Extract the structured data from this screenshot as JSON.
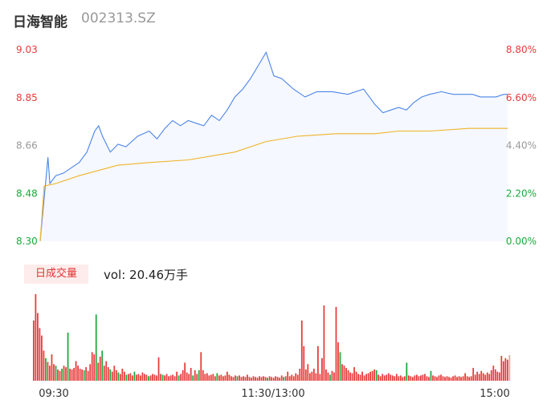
{
  "header": {
    "name": "日海智能",
    "code": "002313.SZ"
  },
  "volume_panel": {
    "tag": "日成交量",
    "vol_label": "vol: 20.46万手"
  },
  "colors": {
    "up": "#e83a3a",
    "down": "#1aaa3b",
    "price_line": "#4b84e8",
    "avg_line": "#f0b429",
    "area": "#f5f8fe",
    "neutral": "#9a9a9a"
  },
  "chart_data": [
    {
      "type": "line",
      "title": "",
      "prev_close": 8.3,
      "ylim": [
        8.3,
        9.03
      ],
      "left_ticks": [
        "9.03",
        "8.85",
        "8.66",
        "8.48",
        "8.30"
      ],
      "right_ticks": [
        "8.80%",
        "6.60%",
        "4.40%",
        "2.20%",
        "0.00%"
      ],
      "x_ticks": [
        "09:30",
        "11:30/13:00",
        "15:00"
      ],
      "series": [
        {
          "values_key": "price",
          "x": [
            0,
            4,
            5,
            8,
            12,
            16,
            20,
            24,
            28,
            30,
            32,
            36,
            40,
            44,
            50,
            56,
            60,
            64,
            68,
            72,
            76,
            80,
            84,
            88,
            92,
            96,
            100,
            104,
            108,
            112,
            116,
            120,
            124,
            130,
            136,
            142,
            150,
            158,
            166,
            172,
            176,
            180,
            184,
            188,
            192,
            196,
            200,
            206,
            212,
            218,
            222,
            226,
            230,
            234,
            238,
            240
          ],
          "values": [
            8.3,
            8.62,
            8.52,
            8.55,
            8.56,
            8.58,
            8.6,
            8.64,
            8.72,
            8.74,
            8.7,
            8.64,
            8.67,
            8.66,
            8.7,
            8.72,
            8.69,
            8.73,
            8.76,
            8.74,
            8.76,
            8.75,
            8.74,
            8.78,
            8.76,
            8.8,
            8.85,
            8.88,
            8.92,
            8.97,
            9.02,
            8.93,
            8.92,
            8.88,
            8.85,
            8.87,
            8.87,
            8.86,
            8.88,
            8.82,
            8.79,
            8.8,
            8.81,
            8.8,
            8.83,
            8.85,
            8.86,
            8.87,
            8.86,
            8.86,
            8.86,
            8.85,
            8.85,
            8.85,
            8.86,
            8.86
          ]
        },
        {
          "values_key": "avg",
          "x": [
            0,
            2,
            8,
            20,
            40,
            56,
            76,
            100,
            116,
            132,
            152,
            172,
            184,
            200,
            220,
            240
          ],
          "values": [
            8.3,
            8.51,
            8.52,
            8.55,
            8.59,
            8.6,
            8.61,
            8.64,
            8.68,
            8.7,
            8.71,
            8.71,
            8.72,
            8.72,
            8.73,
            8.73
          ]
        }
      ]
    },
    {
      "type": "bar",
      "title": "vol: 20.46万手",
      "volume_bars": [
        [
          8,
          "up"
        ],
        [
          11.5,
          "up"
        ],
        [
          9,
          "up"
        ],
        [
          7,
          "up"
        ],
        [
          6,
          "up"
        ],
        [
          4,
          "up"
        ],
        [
          3,
          "down"
        ],
        [
          2.5,
          "up"
        ],
        [
          2,
          "up"
        ],
        [
          3.5,
          "up"
        ],
        [
          2.2,
          "up"
        ],
        [
          2,
          "down"
        ],
        [
          1.5,
          "up"
        ],
        [
          1.3,
          "up"
        ],
        [
          1.6,
          "down"
        ],
        [
          2,
          "up"
        ],
        [
          1.8,
          "up"
        ],
        [
          6.4,
          "down"
        ],
        [
          1.6,
          "up"
        ],
        [
          1.5,
          "up"
        ],
        [
          1.7,
          "up"
        ],
        [
          2.6,
          "up"
        ],
        [
          2,
          "up"
        ],
        [
          1.6,
          "up"
        ],
        [
          1.5,
          "up"
        ],
        [
          1.4,
          "down"
        ],
        [
          1.8,
          "up"
        ],
        [
          1.3,
          "up"
        ],
        [
          2.2,
          "up"
        ],
        [
          3.8,
          "up"
        ],
        [
          3.5,
          "up"
        ],
        [
          8.8,
          "down"
        ],
        [
          2.4,
          "up"
        ],
        [
          3.2,
          "up"
        ],
        [
          4,
          "down"
        ],
        [
          2,
          "up"
        ],
        [
          2.6,
          "up"
        ],
        [
          1.8,
          "up"
        ],
        [
          1.5,
          "down"
        ],
        [
          1.2,
          "up"
        ],
        [
          2,
          "up"
        ],
        [
          1.4,
          "up"
        ],
        [
          1.1,
          "down"
        ],
        [
          0.9,
          "up"
        ],
        [
          1.6,
          "up"
        ],
        [
          1.2,
          "up"
        ],
        [
          0.8,
          "down"
        ],
        [
          0.9,
          "up"
        ],
        [
          1,
          "up"
        ],
        [
          0.7,
          "up"
        ],
        [
          1.2,
          "down"
        ],
        [
          0.8,
          "up"
        ],
        [
          0.9,
          "up"
        ],
        [
          0.7,
          "up"
        ],
        [
          1.1,
          "up"
        ],
        [
          0.9,
          "up"
        ],
        [
          0.8,
          "up"
        ],
        [
          0.6,
          "down"
        ],
        [
          0.7,
          "up"
        ],
        [
          0.9,
          "up"
        ],
        [
          0.8,
          "up"
        ],
        [
          0.7,
          "up"
        ],
        [
          3.1,
          "up"
        ],
        [
          0.9,
          "up"
        ],
        [
          0.8,
          "down"
        ],
        [
          0.7,
          "up"
        ],
        [
          0.9,
          "up"
        ],
        [
          0.6,
          "up"
        ],
        [
          0.7,
          "up"
        ],
        [
          0.8,
          "up"
        ],
        [
          0.6,
          "up"
        ],
        [
          1.2,
          "up"
        ],
        [
          0.7,
          "down"
        ],
        [
          0.9,
          "up"
        ],
        [
          1.4,
          "up"
        ],
        [
          2.4,
          "up"
        ],
        [
          1.1,
          "up"
        ],
        [
          0.9,
          "up"
        ],
        [
          1.7,
          "up"
        ],
        [
          0.7,
          "down"
        ],
        [
          1.4,
          "up"
        ],
        [
          0.9,
          "up"
        ],
        [
          1.4,
          "down"
        ],
        [
          3.8,
          "up"
        ],
        [
          1.4,
          "up"
        ],
        [
          0.9,
          "up"
        ],
        [
          1,
          "up"
        ],
        [
          0.7,
          "up"
        ],
        [
          0.8,
          "up"
        ],
        [
          0.9,
          "up"
        ],
        [
          0.6,
          "up"
        ],
        [
          1,
          "down"
        ],
        [
          0.7,
          "up"
        ],
        [
          0.8,
          "up"
        ],
        [
          0.6,
          "up"
        ],
        [
          0.7,
          "up"
        ],
        [
          1.2,
          "up"
        ],
        [
          0.8,
          "up"
        ],
        [
          0.6,
          "up"
        ],
        [
          0.5,
          "up"
        ],
        [
          0.7,
          "up"
        ],
        [
          0.6,
          "down"
        ],
        [
          0.7,
          "up"
        ],
        [
          0.5,
          "up"
        ],
        [
          0.6,
          "up"
        ],
        [
          0.5,
          "up"
        ],
        [
          0.8,
          "up"
        ],
        [
          0.5,
          "up"
        ],
        [
          0.4,
          "up"
        ],
        [
          0.6,
          "up"
        ],
        [
          0.5,
          "up"
        ],
        [
          0.4,
          "up"
        ],
        [
          0.6,
          "up"
        ],
        [
          0.5,
          "up"
        ],
        [
          0.6,
          "up"
        ],
        [
          0.5,
          "up"
        ],
        [
          0.4,
          "down"
        ],
        [
          0.6,
          "up"
        ],
        [
          0.5,
          "up"
        ],
        [
          0.4,
          "up"
        ],
        [
          0.6,
          "up"
        ],
        [
          0.5,
          "up"
        ],
        [
          0.4,
          "up"
        ],
        [
          0.7,
          "up"
        ],
        [
          0.5,
          "down"
        ],
        [
          0.6,
          "up"
        ],
        [
          1.2,
          "up"
        ],
        [
          0.6,
          "up"
        ],
        [
          0.8,
          "up"
        ],
        [
          0.6,
          "up"
        ],
        [
          1,
          "up"
        ],
        [
          0.8,
          "up"
        ],
        [
          1.6,
          "up"
        ],
        [
          8,
          "up"
        ],
        [
          4.6,
          "up"
        ],
        [
          1.5,
          "up"
        ],
        [
          2.2,
          "up"
        ],
        [
          1,
          "up"
        ],
        [
          1.2,
          "up"
        ],
        [
          1.6,
          "up"
        ],
        [
          1,
          "up"
        ],
        [
          4.6,
          "up"
        ],
        [
          0.9,
          "up"
        ],
        [
          3,
          "up"
        ],
        [
          10,
          "up"
        ],
        [
          1.5,
          "up"
        ],
        [
          1.1,
          "up"
        ],
        [
          0.8,
          "down"
        ],
        [
          1.3,
          "up"
        ],
        [
          1.1,
          "up"
        ],
        [
          9.8,
          "up"
        ],
        [
          5.1,
          "up"
        ],
        [
          3.8,
          "down"
        ],
        [
          2.2,
          "up"
        ],
        [
          2,
          "up"
        ],
        [
          1.7,
          "up"
        ],
        [
          1.4,
          "up"
        ],
        [
          1.1,
          "up"
        ],
        [
          1,
          "up"
        ],
        [
          1.8,
          "up"
        ],
        [
          1.2,
          "up"
        ],
        [
          0.9,
          "up"
        ],
        [
          0.8,
          "up"
        ],
        [
          1.2,
          "up"
        ],
        [
          0.7,
          "up"
        ],
        [
          0.9,
          "up"
        ],
        [
          1,
          "up"
        ],
        [
          1.2,
          "up"
        ],
        [
          1.3,
          "up"
        ],
        [
          1.5,
          "up"
        ],
        [
          1.4,
          "down"
        ],
        [
          0.8,
          "up"
        ],
        [
          0.6,
          "up"
        ],
        [
          0.9,
          "up"
        ],
        [
          0.7,
          "up"
        ],
        [
          0.8,
          "up"
        ],
        [
          1,
          "up"
        ],
        [
          0.8,
          "up"
        ],
        [
          0.7,
          "up"
        ],
        [
          0.6,
          "up"
        ],
        [
          0.9,
          "up"
        ],
        [
          0.6,
          "up"
        ],
        [
          0.7,
          "up"
        ],
        [
          0.5,
          "up"
        ],
        [
          0.6,
          "up"
        ],
        [
          2.4,
          "down"
        ],
        [
          0.7,
          "up"
        ],
        [
          0.6,
          "up"
        ],
        [
          0.5,
          "up"
        ],
        [
          0.7,
          "up"
        ],
        [
          0.8,
          "up"
        ],
        [
          0.6,
          "up"
        ],
        [
          0.7,
          "up"
        ],
        [
          0.8,
          "up"
        ],
        [
          0.9,
          "up"
        ],
        [
          0.6,
          "up"
        ],
        [
          0.5,
          "up"
        ],
        [
          1.3,
          "down"
        ],
        [
          0.7,
          "up"
        ],
        [
          0.6,
          "up"
        ],
        [
          0.5,
          "up"
        ],
        [
          0.7,
          "up"
        ],
        [
          0.8,
          "up"
        ],
        [
          0.6,
          "up"
        ],
        [
          0.5,
          "up"
        ],
        [
          0.6,
          "up"
        ],
        [
          0.5,
          "up"
        ],
        [
          0.4,
          "up"
        ],
        [
          0.6,
          "up"
        ],
        [
          0.7,
          "up"
        ],
        [
          0.5,
          "up"
        ],
        [
          0.6,
          "up"
        ],
        [
          0.5,
          "up"
        ],
        [
          0.6,
          "up"
        ],
        [
          1,
          "up"
        ],
        [
          0.6,
          "up"
        ],
        [
          0.5,
          "up"
        ],
        [
          0.6,
          "up"
        ],
        [
          1.7,
          "up"
        ],
        [
          0.8,
          "up"
        ],
        [
          1.2,
          "up"
        ],
        [
          0.9,
          "up"
        ],
        [
          1.3,
          "up"
        ],
        [
          1,
          "up"
        ],
        [
          0.8,
          "up"
        ],
        [
          1.1,
          "up"
        ],
        [
          0.9,
          "up"
        ],
        [
          1.4,
          "up"
        ],
        [
          2,
          "up"
        ],
        [
          1.5,
          "up"
        ],
        [
          1.2,
          "up"
        ],
        [
          1.1,
          "up"
        ],
        [
          3.3,
          "up"
        ],
        [
          2.6,
          "up"
        ],
        [
          3,
          "up"
        ],
        [
          2.8,
          "up"
        ],
        [
          3.4,
          "neutral"
        ]
      ]
    }
  ]
}
